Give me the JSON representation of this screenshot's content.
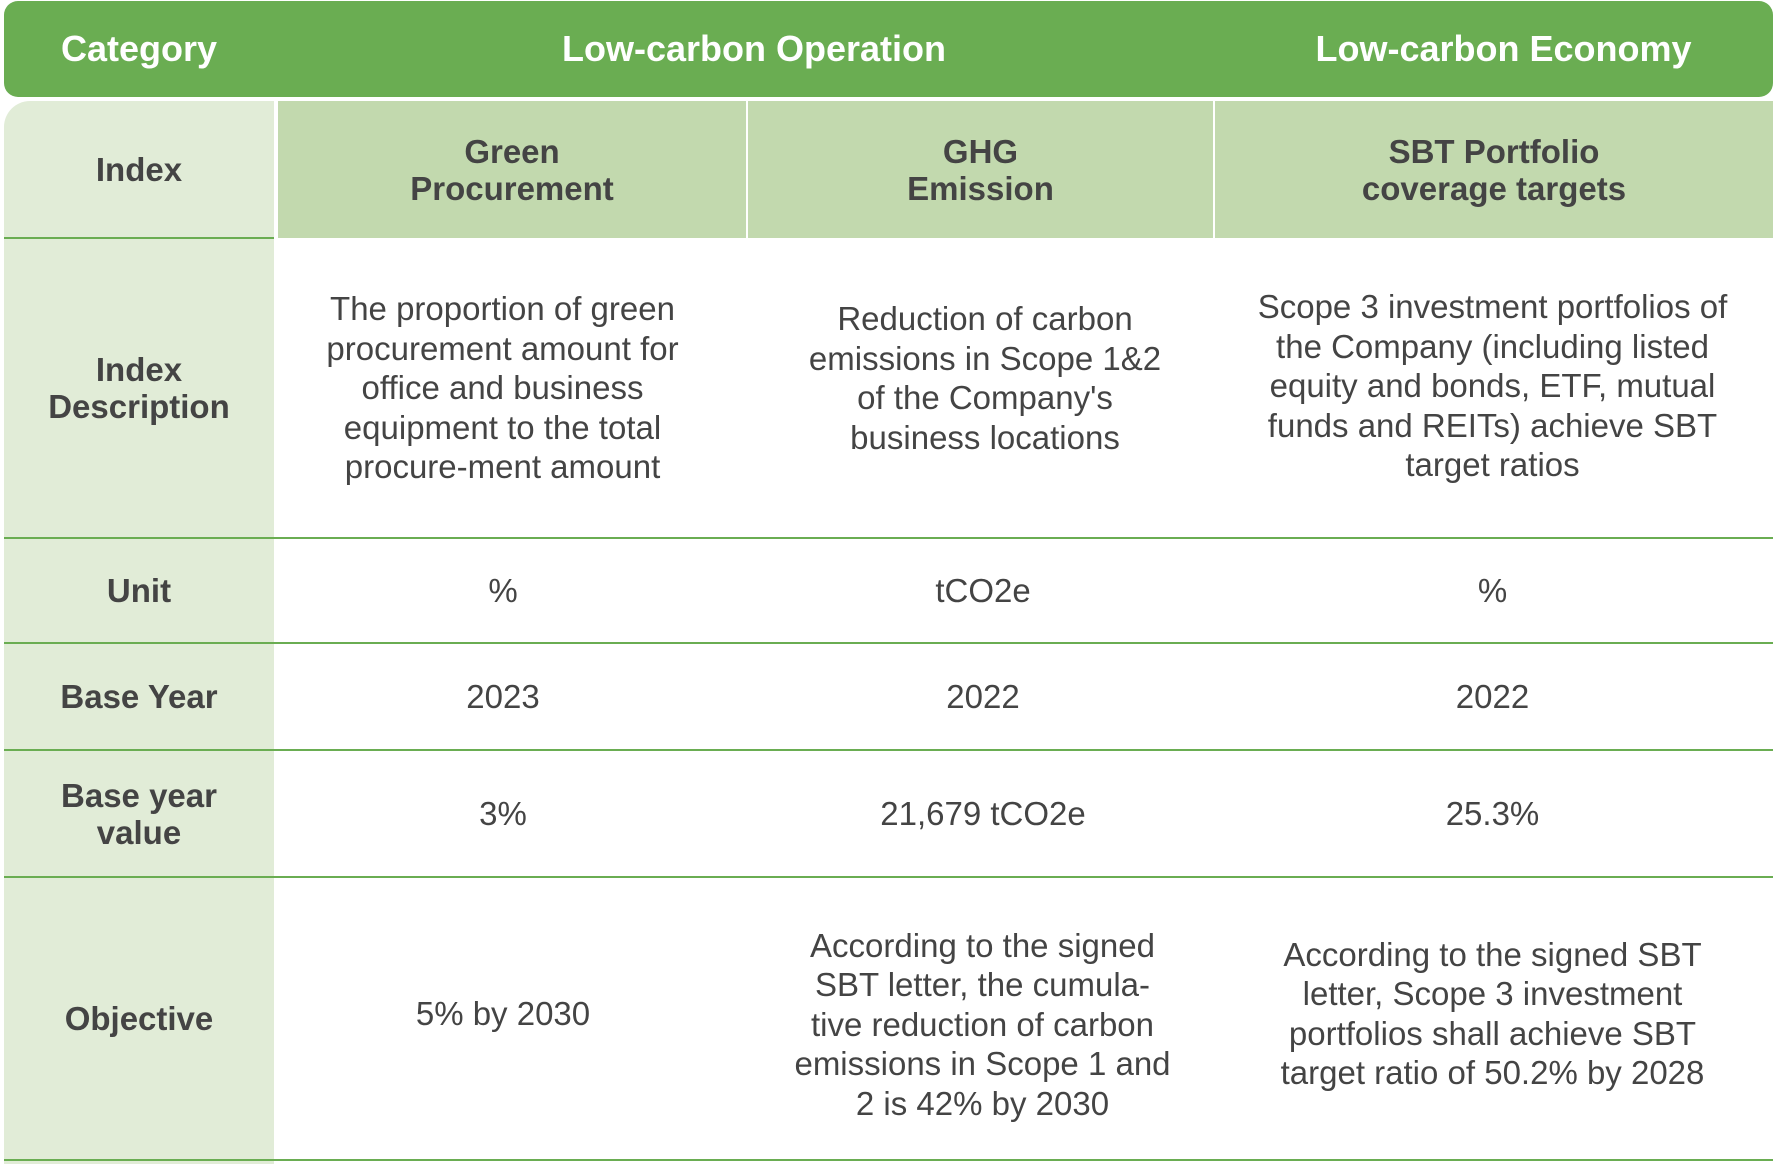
{
  "header": {
    "category": "Category",
    "low_carbon_operation": "Low-carbon Operation",
    "low_carbon_economy": "Low-carbon Economy"
  },
  "row_labels": {
    "index": "Index",
    "index_description": "Index Description",
    "unit": "Unit",
    "base_year": "Base Year",
    "base_year_value": "Base year value",
    "objective": "Objective"
  },
  "columns": [
    {
      "index": "Green Procurement",
      "description": "The proportion of green procurement amount for office and business equipment to the total procure-ment amount",
      "unit": "%",
      "base_year": "2023",
      "base_year_value": "3%",
      "objective": "5% by 2030"
    },
    {
      "index": "GHG Emission",
      "description": "Reduction of carbon emissions in Scope 1&2 of the Company's business locations",
      "unit": "tCO2e",
      "base_year": "2022",
      "base_year_value": "21,679 tCO2e",
      "objective": "According to the signed SBT letter, the cumula-tive reduction of carbon emissions in Scope 1 and 2 is 42% by 2030"
    },
    {
      "index": "SBT Portfolio coverage targets",
      "description": "Scope 3 investment portfolios of the Company (including listed equity and bonds, ETF, mutual funds and REITs) achieve SBT target ratios",
      "unit": "%",
      "base_year": "2022",
      "base_year_value": "25.3%",
      "objective": "According to the signed SBT letter, Scope 3 investment portfolios shall achieve SBT target ratio of 50.2% by 2028"
    }
  ],
  "colors": {
    "header_green": "#6aad52",
    "index_green": "#c2d9ae",
    "label_column": "#e1ecd7",
    "text": "#444444"
  }
}
